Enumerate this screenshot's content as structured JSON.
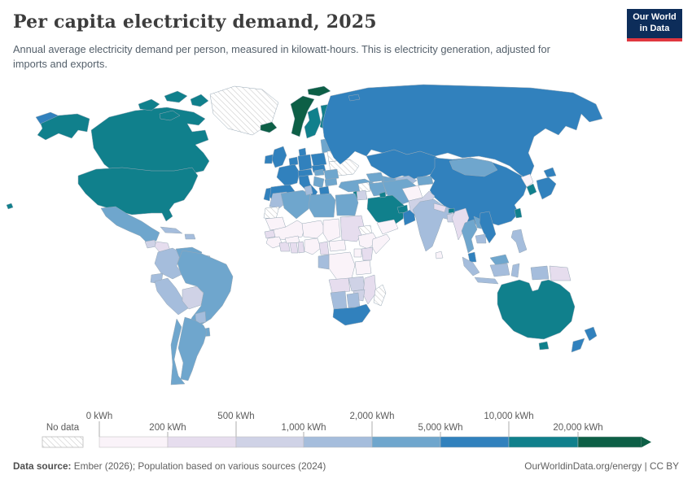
{
  "header": {
    "title": "Per capita electricity demand, 2025",
    "subtitle": "Annual average electricity demand per person, measured in kilowatt-hours. This is electricity generation, adjusted for imports and exports.",
    "logo_line1": "Our World",
    "logo_line2": "in Data",
    "logo_bg": "#0d2d5a",
    "logo_accent": "#e0373f"
  },
  "legend": {
    "no_data_label": "No data",
    "tick_labels": [
      "0 kWh",
      "200 kWh",
      "500 kWh",
      "1,000 kWh",
      "2,000 kWh",
      "5,000 kWh",
      "10,000 kWh",
      "20,000 kWh"
    ]
  },
  "footer": {
    "source_label": "Data source:",
    "source_text": " Ember (2026); Population based on various sources (2024)",
    "site": "OurWorldinData.org/energy",
    "separator": " | ",
    "license": "CC BY"
  },
  "chart_data": {
    "type": "choropleth_map",
    "title": "Per capita electricity demand, 2025",
    "unit": "kWh",
    "year": 2025,
    "bin_colors": [
      "#faf3f9",
      "#e6ddee",
      "#cfd2e6",
      "#a5bddc",
      "#6fa6cd",
      "#3181bd",
      "#10808c",
      "#0d5f46"
    ],
    "legend_bins": [
      {
        "min": 0,
        "max": 200
      },
      {
        "min": 200,
        "max": 500
      },
      {
        "min": 500,
        "max": 1000
      },
      {
        "min": 1000,
        "max": 2000
      },
      {
        "min": 2000,
        "max": 5000
      },
      {
        "min": 5000,
        "max": 10000
      },
      {
        "min": 10000,
        "max": 20000
      },
      {
        "min": 20000,
        "max": null
      }
    ],
    "no_data_style": "diagonal-hatch",
    "regions": [
      {
        "id": "chukotka-russia",
        "bin": 5
      },
      {
        "id": "alaska-united-states",
        "bin": 6
      },
      {
        "id": "canada",
        "bin": 6
      },
      {
        "id": "canadian-arctic-islands",
        "bin": 6
      },
      {
        "id": "greenland",
        "bin": "no_data"
      },
      {
        "id": "iceland",
        "bin": 7
      },
      {
        "id": "united-states",
        "bin": 6
      },
      {
        "id": "hawaii-united-states",
        "bin": 6
      },
      {
        "id": "mexico",
        "bin": 4
      },
      {
        "id": "guatemala",
        "bin": 2
      },
      {
        "id": "honduras-nicaragua",
        "bin": 1
      },
      {
        "id": "costa-rica-panama",
        "bin": 4
      },
      {
        "id": "cuba",
        "bin": 3
      },
      {
        "id": "hispaniola",
        "bin": 3
      },
      {
        "id": "colombia",
        "bin": 3
      },
      {
        "id": "venezuela",
        "bin": 4
      },
      {
        "id": "guyana-suriname",
        "bin": 3
      },
      {
        "id": "ecuador",
        "bin": 3
      },
      {
        "id": "peru",
        "bin": 3
      },
      {
        "id": "bolivia",
        "bin": 2
      },
      {
        "id": "brazil",
        "bin": 4
      },
      {
        "id": "paraguay",
        "bin": 3
      },
      {
        "id": "uruguay",
        "bin": 4
      },
      {
        "id": "argentina",
        "bin": 4
      },
      {
        "id": "chile",
        "bin": 4
      },
      {
        "id": "norway",
        "bin": 7
      },
      {
        "id": "svalbard-norway",
        "bin": 7
      },
      {
        "id": "sweden",
        "bin": 6
      },
      {
        "id": "finland",
        "bin": 6
      },
      {
        "id": "denmark",
        "bin": 5
      },
      {
        "id": "united-kingdom",
        "bin": 5
      },
      {
        "id": "ireland",
        "bin": 5
      },
      {
        "id": "benelux",
        "bin": 5
      },
      {
        "id": "germany",
        "bin": 5
      },
      {
        "id": "france",
        "bin": 5
      },
      {
        "id": "spain",
        "bin": 5
      },
      {
        "id": "portugal",
        "bin": 5
      },
      {
        "id": "italy",
        "bin": 5
      },
      {
        "id": "switzerland-austria",
        "bin": 5
      },
      {
        "id": "czechia-slovakia",
        "bin": 5
      },
      {
        "id": "poland",
        "bin": 5
      },
      {
        "id": "baltic-states",
        "bin": 4
      },
      {
        "id": "belarus",
        "bin": "no_data"
      },
      {
        "id": "ukraine",
        "bin": "no_data"
      },
      {
        "id": "romania",
        "bin": 4
      },
      {
        "id": "hungary",
        "bin": 4
      },
      {
        "id": "balkans",
        "bin": 4
      },
      {
        "id": "bulgaria",
        "bin": 4
      },
      {
        "id": "greece",
        "bin": 5
      },
      {
        "id": "russia",
        "bin": 5
      },
      {
        "id": "franz-josef-land-russia",
        "bin": 5
      },
      {
        "id": "kazakhstan",
        "bin": 5
      },
      {
        "id": "uzbekistan",
        "bin": 3
      },
      {
        "id": "turkmenistan",
        "bin": 4
      },
      {
        "id": "kyrgyzstan-tajikistan",
        "bin": 4
      },
      {
        "id": "caucasus",
        "bin": 4
      },
      {
        "id": "turkey",
        "bin": 4
      },
      {
        "id": "china",
        "bin": 5
      },
      {
        "id": "mongolia",
        "bin": 4
      },
      {
        "id": "iran",
        "bin": 4
      },
      {
        "id": "iraq",
        "bin": 4
      },
      {
        "id": "syria",
        "bin": "no_data"
      },
      {
        "id": "jordan",
        "bin": 2
      },
      {
        "id": "israel",
        "bin": 6
      },
      {
        "id": "saudi-arabia",
        "bin": 6
      },
      {
        "id": "kuwait",
        "bin": 6
      },
      {
        "id": "uae-qatar",
        "bin": 6
      },
      {
        "id": "oman",
        "bin": 5
      },
      {
        "id": "yemen",
        "bin": 0
      },
      {
        "id": "afghanistan",
        "bin": 0
      },
      {
        "id": "pakistan",
        "bin": 2
      },
      {
        "id": "india",
        "bin": 3
      },
      {
        "id": "nepal",
        "bin": 1
      },
      {
        "id": "bhutan",
        "bin": 6
      },
      {
        "id": "bangladesh",
        "bin": 2
      },
      {
        "id": "sri-lanka",
        "bin": 0
      },
      {
        "id": "myanmar",
        "bin": 1
      },
      {
        "id": "thailand",
        "bin": 4
      },
      {
        "id": "laos",
        "bin": 4
      },
      {
        "id": "vietnam",
        "bin": 5
      },
      {
        "id": "cambodia",
        "bin": 3
      },
      {
        "id": "peninsular-malaysia",
        "bin": 5
      },
      {
        "id": "east-malaysia",
        "bin": 4
      },
      {
        "id": "indonesia-sumatra",
        "bin": 3
      },
      {
        "id": "indonesia-java",
        "bin": 3
      },
      {
        "id": "indonesia-kalimantan",
        "bin": 3
      },
      {
        "id": "indonesia-sulawesi",
        "bin": 3
      },
      {
        "id": "indonesia-papua",
        "bin": 3
      },
      {
        "id": "papua-new-guinea",
        "bin": 1
      },
      {
        "id": "philippines",
        "bin": 3
      },
      {
        "id": "taiwan",
        "bin": 6
      },
      {
        "id": "north-korea",
        "bin": 0
      },
      {
        "id": "south-korea",
        "bin": 6
      },
      {
        "id": "japan",
        "bin": 5
      },
      {
        "id": "australia",
        "bin": 6
      },
      {
        "id": "tasmania-australia",
        "bin": 6
      },
      {
        "id": "new-zealand",
        "bin": 5
      },
      {
        "id": "morocco",
        "bin": 3
      },
      {
        "id": "western-sahara",
        "bin": "no_data"
      },
      {
        "id": "algeria",
        "bin": 4
      },
      {
        "id": "tunisia",
        "bin": 3
      },
      {
        "id": "libya",
        "bin": 4
      },
      {
        "id": "egypt",
        "bin": 4
      },
      {
        "id": "mauritania",
        "bin": 0
      },
      {
        "id": "mali",
        "bin": 0
      },
      {
        "id": "niger",
        "bin": 0
      },
      {
        "id": "chad",
        "bin": 0
      },
      {
        "id": "sudan",
        "bin": 1
      },
      {
        "id": "eritrea",
        "bin": "no_data"
      },
      {
        "id": "senegal",
        "bin": 1
      },
      {
        "id": "guinea-region",
        "bin": 0
      },
      {
        "id": "cote-divoire",
        "bin": 1
      },
      {
        "id": "ghana",
        "bin": 1
      },
      {
        "id": "burkina-faso",
        "bin": 0
      },
      {
        "id": "togo-benin",
        "bin": 1
      },
      {
        "id": "nigeria",
        "bin": 0
      },
      {
        "id": "cameroon",
        "bin": 1
      },
      {
        "id": "central-african-republic",
        "bin": 0
      },
      {
        "id": "ethiopia",
        "bin": 0
      },
      {
        "id": "somalia",
        "bin": 0
      },
      {
        "id": "kenya",
        "bin": 1
      },
      {
        "id": "uganda",
        "bin": 0
      },
      {
        "id": "dr-congo",
        "bin": 0
      },
      {
        "id": "gabon-congo",
        "bin": 3
      },
      {
        "id": "tanzania",
        "bin": 0
      },
      {
        "id": "angola",
        "bin": 1
      },
      {
        "id": "zambia",
        "bin": 2
      },
      {
        "id": "mozambique",
        "bin": 1
      },
      {
        "id": "zimbabwe",
        "bin": 2
      },
      {
        "id": "namibia",
        "bin": 3
      },
      {
        "id": "botswana",
        "bin": 3
      },
      {
        "id": "south-africa",
        "bin": 5
      },
      {
        "id": "madagascar",
        "bin": "no_data"
      }
    ]
  }
}
